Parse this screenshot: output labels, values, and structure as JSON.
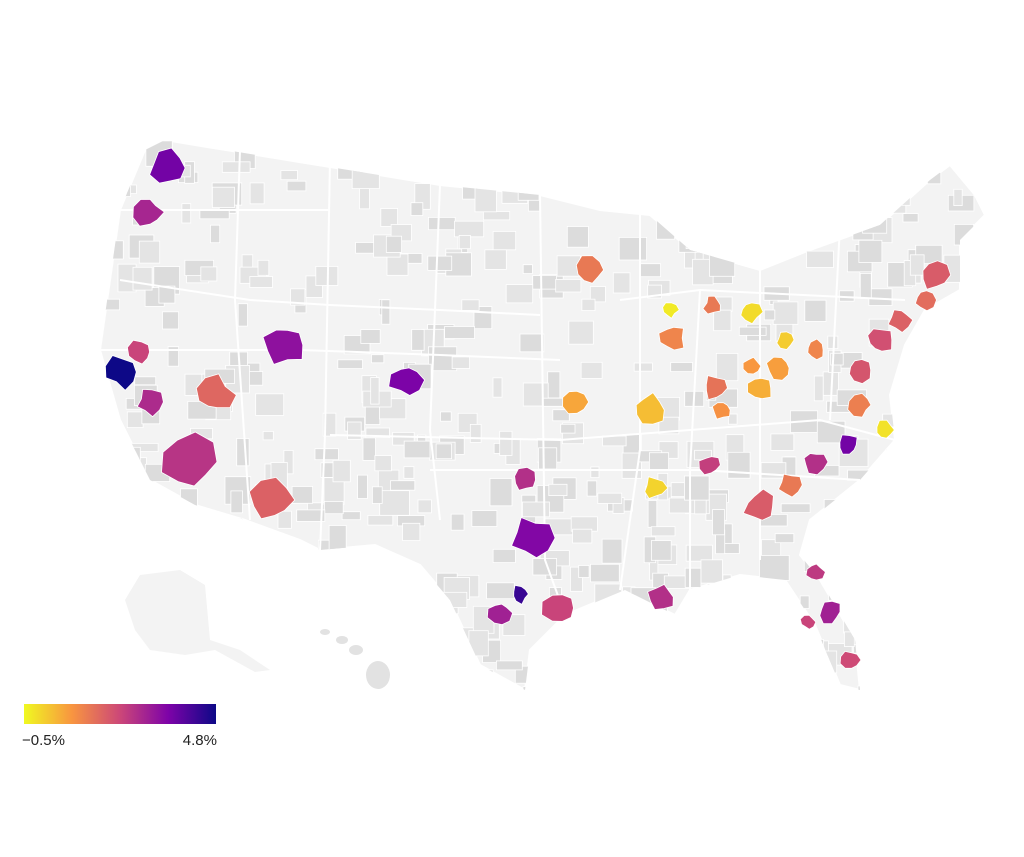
{
  "map": {
    "colors": [
      "#f0f921",
      "#f89540",
      "#cc4778",
      "#7e03a8",
      "#0d0887"
    ],
    "scale": [
      {
        "value": -0.5,
        "label": "−0.5%"
      },
      {
        "value": 4.8,
        "label": "4.8%"
      }
    ],
    "regions": [
      3.6,
      2.8,
      4.8,
      2.2,
      2.7,
      2.5,
      1.6,
      3.2,
      3.5,
      1.7,
      3.4,
      2.6,
      4.3,
      2.9,
      2.2,
      2.6,
      1.3,
      0.6,
      0.3,
      1.1,
      -0.3,
      1.3,
      -0.1,
      1.4,
      0.9,
      0.5,
      0.7,
      0.1,
      1.1,
      0.8,
      0.0,
      2.3,
      1.8,
      1.3,
      2.6,
      3.6,
      -0.2,
      1.2,
      1.9,
      2.0,
      1.7,
      1.8,
      1.5,
      2.4,
      2.9,
      2.2,
      2.1
    ]
  }
}
